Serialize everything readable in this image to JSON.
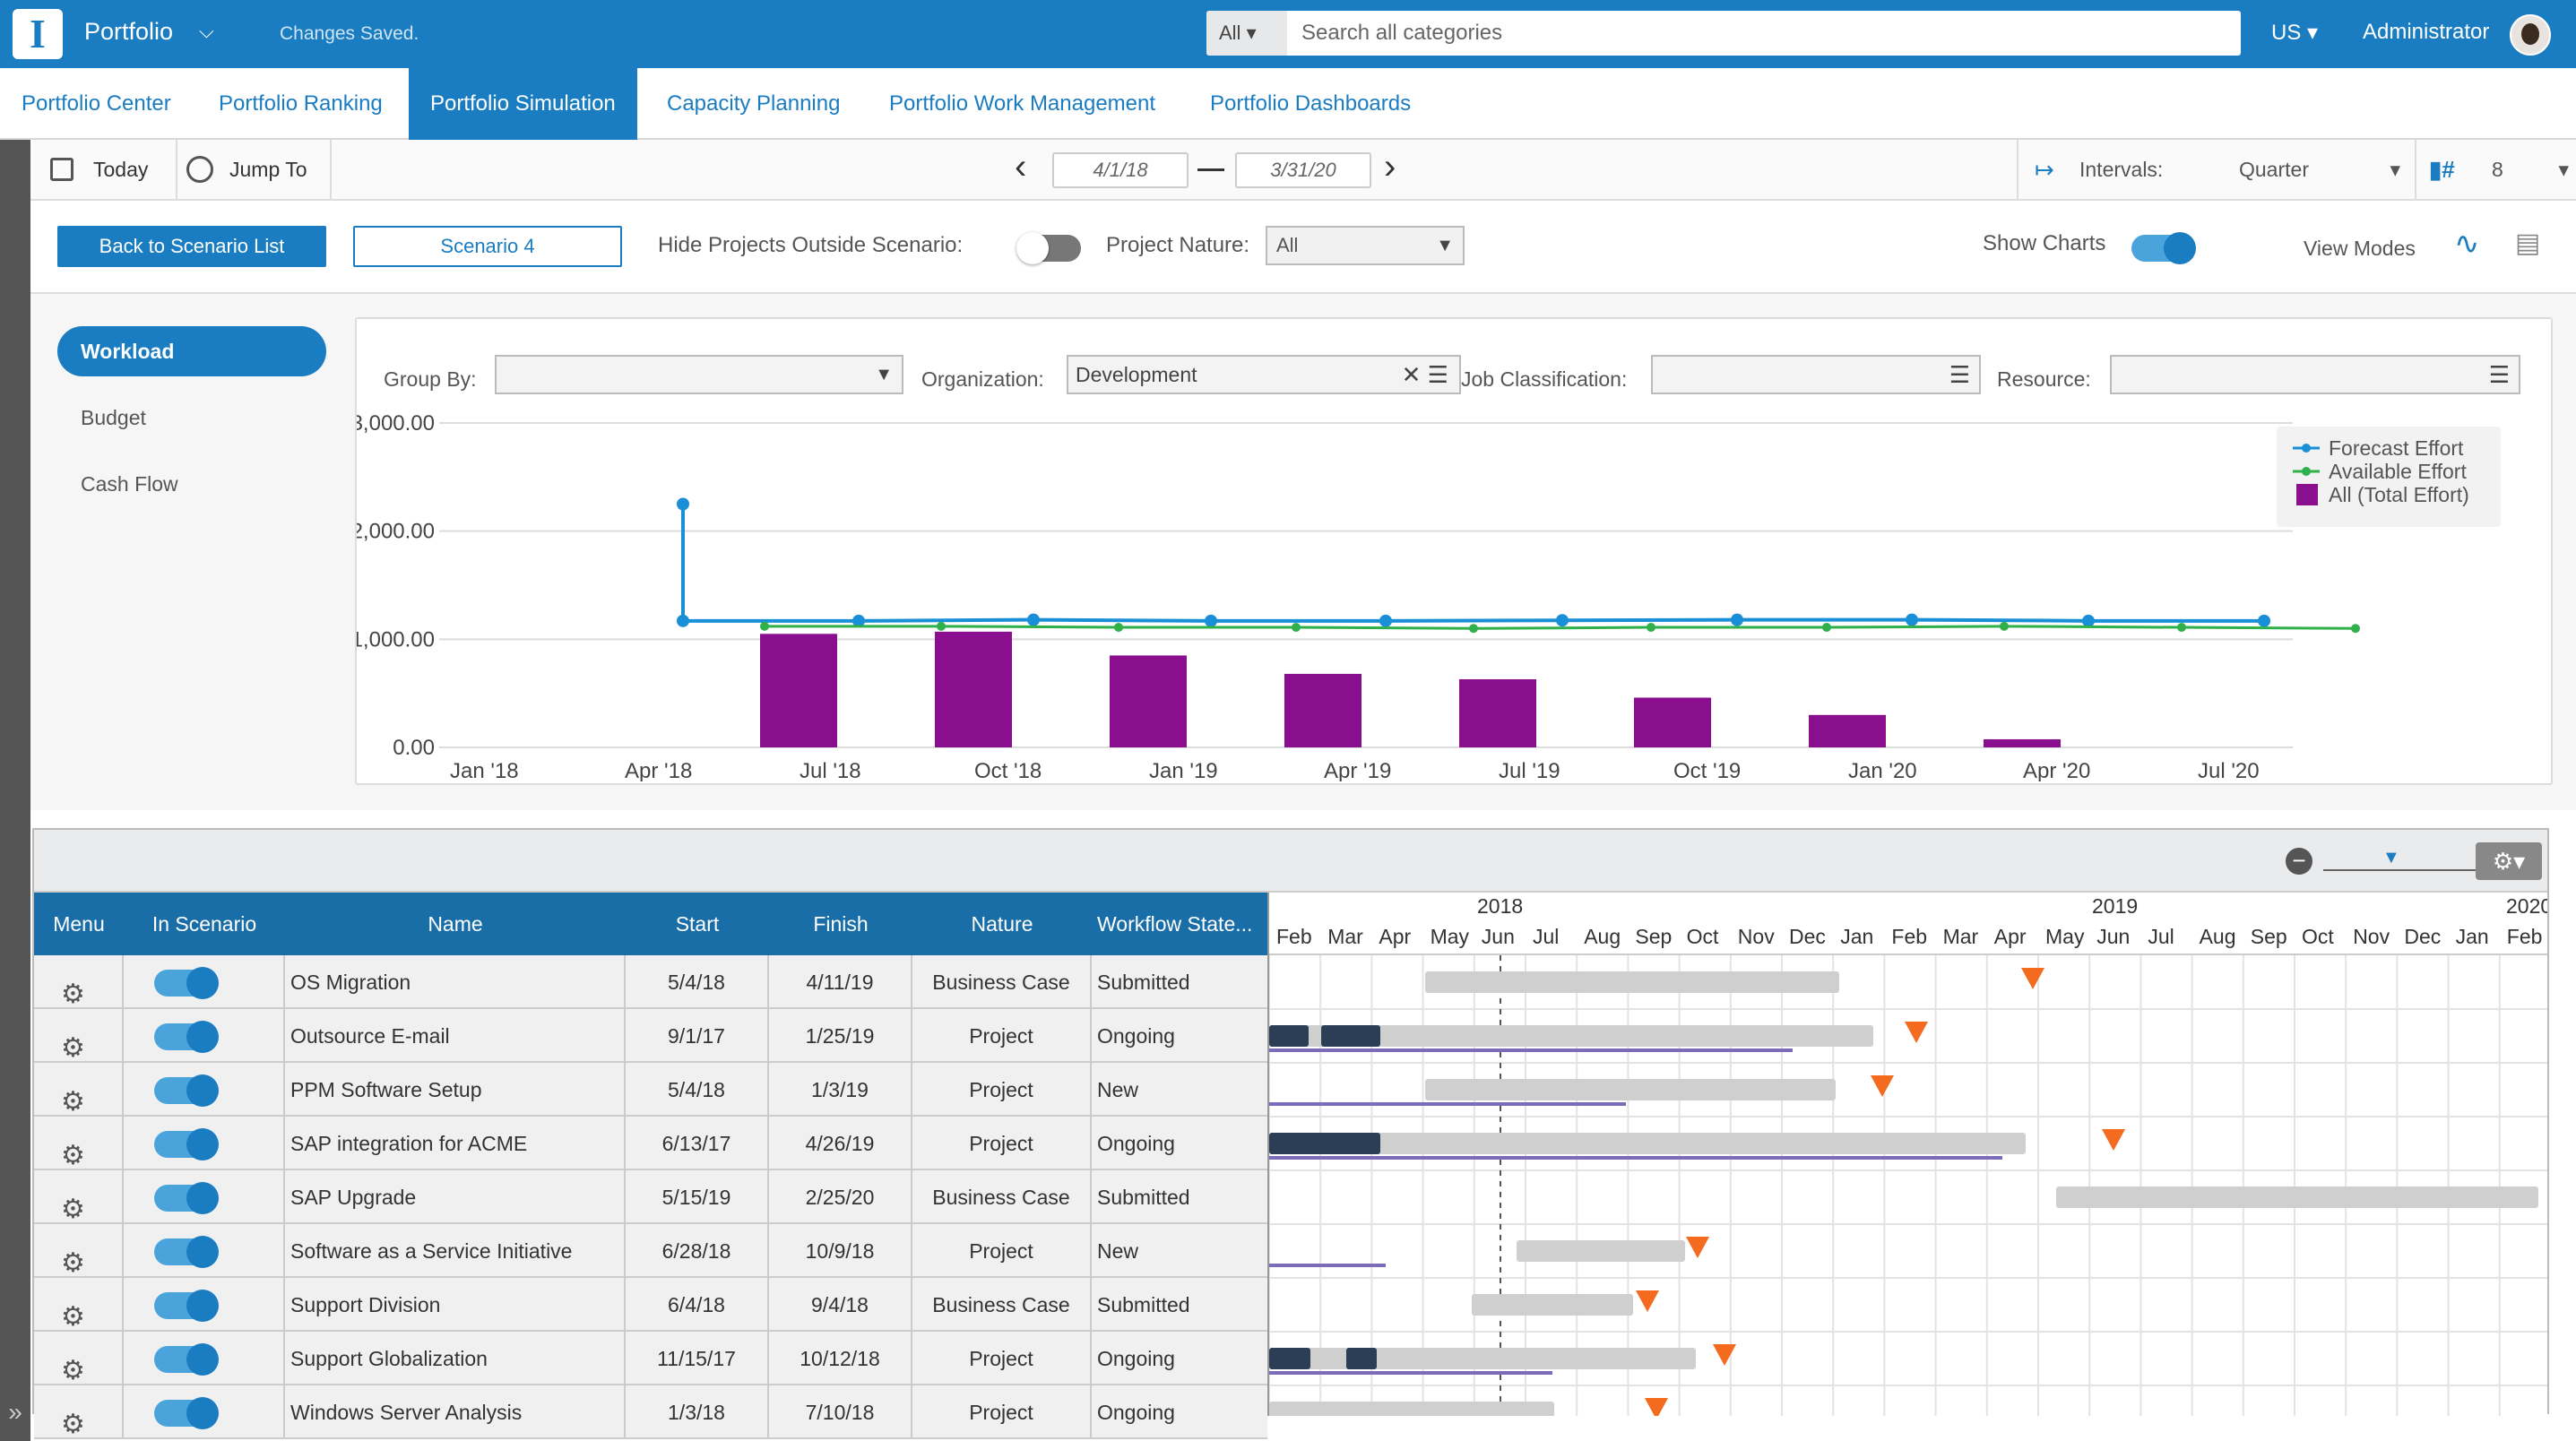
{
  "topbar": {
    "app": "Portfolio",
    "status": "Changes Saved.",
    "search_scope": "All",
    "search_placeholder": "Search all categories",
    "lang": "US",
    "user": "Administrator"
  },
  "nav": [
    "Portfolio Center",
    "Portfolio Ranking",
    "Portfolio Simulation",
    "Capacity Planning",
    "Portfolio Work Management",
    "Portfolio Dashboards"
  ],
  "toolbar": {
    "today": "Today",
    "jump": "Jump To",
    "start": "4/1/18",
    "end": "3/31/20",
    "intervals_label": "Intervals:",
    "interval": "Quarter",
    "count": "8"
  },
  "scenario": {
    "back": "Back to Scenario List",
    "name": "Scenario 4",
    "hide_label": "Hide Projects Outside Scenario:",
    "nature_label": "Project Nature:",
    "nature": "All",
    "show_charts": "Show Charts",
    "view_modes": "View Modes"
  },
  "side": [
    "Workload",
    "Budget",
    "Cash Flow"
  ],
  "filters": {
    "group_by": "Group By:",
    "org_label": "Organization:",
    "org": "Development",
    "job_label": "Job Classification:",
    "res_label": "Resource:"
  },
  "chart_data": {
    "type": "line",
    "y_ticks": [
      "3,000.00",
      "2,000.00",
      "1,000.00",
      "0.00"
    ],
    "ylim": [
      0,
      3000
    ],
    "x_ticks": [
      "Jan '18",
      "Apr '18",
      "Jul '18",
      "Oct '18",
      "Jan '19",
      "Apr '19",
      "Jul '19",
      "Oct '19",
      "Jan '20",
      "Apr '20",
      "Jul '20"
    ],
    "legend": [
      "Forecast Effort",
      "Available Effort",
      "All (Total Effort)"
    ],
    "bars": [
      1050,
      1070,
      850,
      680,
      630,
      460,
      300,
      75
    ],
    "forecast": [
      2250,
      1170,
      1170,
      1180,
      1170,
      1170,
      1175,
      1180,
      1180,
      1170,
      1170,
      1170
    ],
    "available": [
      1120,
      1120,
      1110,
      1110,
      1100,
      1110,
      1110,
      1120,
      1110,
      1100,
      1100,
      1100
    ],
    "colors": {
      "forecast": "#1a8fd8",
      "available": "#2fb04a",
      "bars": "#8a0f8e"
    }
  },
  "table": {
    "headers": [
      "Menu",
      "In Scenario",
      "Name",
      "Start",
      "Finish",
      "Nature",
      "Workflow State..."
    ],
    "rows": [
      [
        "OS Migration",
        "5/4/18",
        "4/11/19",
        "Business Case",
        "Submitted"
      ],
      [
        "Outsource E-mail",
        "9/1/17",
        "1/25/19",
        "Project",
        "Ongoing"
      ],
      [
        "PPM Software Setup",
        "5/4/18",
        "1/3/19",
        "Project",
        "New"
      ],
      [
        "SAP integration for ACME",
        "6/13/17",
        "4/26/19",
        "Project",
        "Ongoing"
      ],
      [
        "SAP Upgrade",
        "5/15/19",
        "2/25/20",
        "Business Case",
        "Submitted"
      ],
      [
        "Software as a Service Initiative",
        "6/28/18",
        "10/9/18",
        "Project",
        "New"
      ],
      [
        "Support Division",
        "6/4/18",
        "9/4/18",
        "Business Case",
        "Submitted"
      ],
      [
        "Support Globalization",
        "11/15/17",
        "10/12/18",
        "Project",
        "Ongoing"
      ],
      [
        "Windows Server Analysis",
        "1/3/18",
        "7/10/18",
        "Project",
        "Ongoing"
      ]
    ]
  },
  "gantt": {
    "years": [
      "2018",
      "2019",
      "2020"
    ],
    "months": [
      "Feb",
      "Mar",
      "Apr",
      "May",
      "Jun",
      "Jul",
      "Aug",
      "Sep",
      "Oct",
      "Nov",
      "Dec",
      "Jan",
      "Feb",
      "Mar",
      "Apr",
      "May",
      "Jun",
      "Jul",
      "Aug",
      "Sep",
      "Oct",
      "Nov",
      "Dec",
      "Jan",
      "Feb"
    ]
  }
}
